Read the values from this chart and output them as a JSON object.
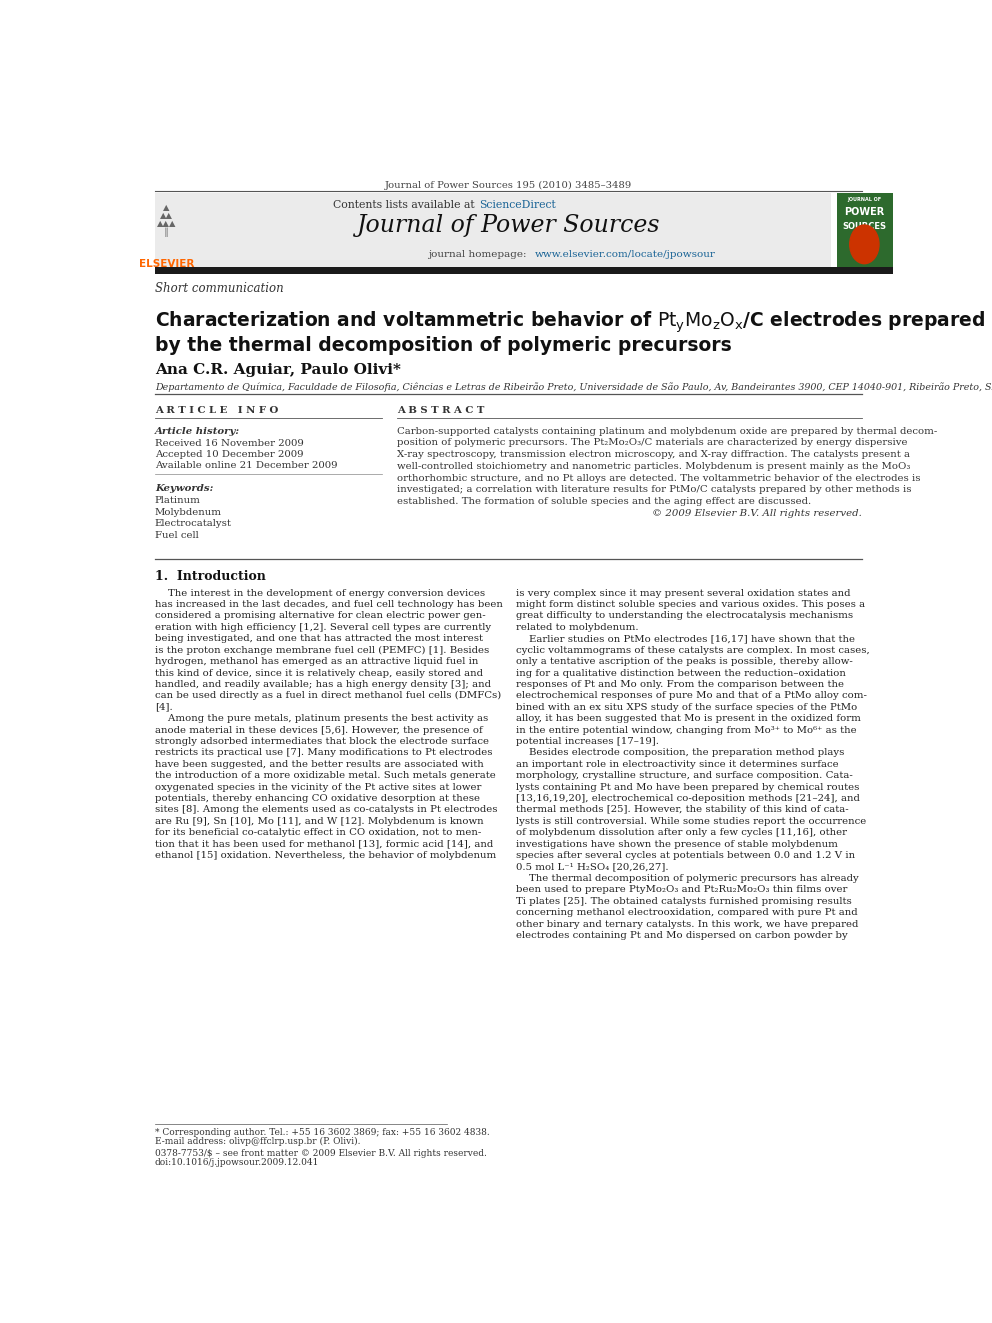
{
  "page_width": 9.92,
  "page_height": 13.23,
  "background_color": "#ffffff",
  "top_journal_ref": "Journal of Power Sources 195 (2010) 3485–3489",
  "header_bg": "#ebebeb",
  "header_sciencedirect_color": "#1a6496",
  "journal_name": "Journal of Power Sources",
  "journal_homepage_url_color": "#1a6496",
  "section_type": "Short communication",
  "title_line1": "Characterization and voltammetric behavior of $\\mathrm{Pt_yMo_zO_x}$/C electrodes prepared",
  "title_line2": "by the thermal decomposition of polymeric precursors",
  "authors": "Ana C.R. Aguiar, Paulo Olivi*",
  "affiliation": "Departamento de Química, Faculdade de Filosofia, Ciências e Letras de Ribeirão Preto, Universidade de São Paulo, Av, Bandeirantes 3900, CEP 14040-901, Ribeirão Preto, SP, Brazil",
  "article_info_header": "A R T I C L E   I N F O",
  "abstract_header": "A B S T R A C T",
  "article_history_label": "Article history:",
  "received": "Received 16 November 2009",
  "accepted": "Accepted 10 December 2009",
  "available": "Available online 21 December 2009",
  "keywords_label": "Keywords:",
  "keywords": [
    "Platinum",
    "Molybdenum",
    "Electrocatalyst",
    "Fuel cell"
  ],
  "abstract_lines": [
    "Carbon-supported catalysts containing platinum and molybdenum oxide are prepared by thermal decom-",
    "position of polymeric precursors. The Pt₂Mo₂O₃/C materials are characterized by energy dispersive",
    "X-ray spectroscopy, transmission electron microscopy, and X-ray diffraction. The catalysts present a",
    "well-controlled stoichiometry and nanometric particles. Molybdenum is present mainly as the MoO₃",
    "orthorhombic structure, and no Pt alloys are detected. The voltammetric behavior of the electrodes is",
    "investigated; a correlation with literature results for PtMo/C catalysts prepared by other methods is",
    "established. The formation of soluble species and the aging effect are discussed."
  ],
  "copyright": "© 2009 Elsevier B.V. All rights reserved.",
  "intro_header": "1.  Introduction",
  "col1_lines": [
    "    The interest in the development of energy conversion devices",
    "has increased in the last decades, and fuel cell technology has been",
    "considered a promising alternative for clean electric power gen-",
    "eration with high efficiency [1,2]. Several cell types are currently",
    "being investigated, and one that has attracted the most interest",
    "is the proton exchange membrane fuel cell (PEMFC) [1]. Besides",
    "hydrogen, methanol has emerged as an attractive liquid fuel in",
    "this kind of device, since it is relatively cheap, easily stored and",
    "handled, and readily available; has a high energy density [3]; and",
    "can be used directly as a fuel in direct methanol fuel cells (DMFCs)",
    "[4].",
    "    Among the pure metals, platinum presents the best activity as",
    "anode material in these devices [5,6]. However, the presence of",
    "strongly adsorbed intermediates that block the electrode surface",
    "restricts its practical use [7]. Many modifications to Pt electrodes",
    "have been suggested, and the better results are associated with",
    "the introduction of a more oxidizable metal. Such metals generate",
    "oxygenated species in the vicinity of the Pt active sites at lower",
    "potentials, thereby enhancing CO oxidative desorption at these",
    "sites [8]. Among the elements used as co-catalysts in Pt electrodes",
    "are Ru [9], Sn [10], Mo [11], and W [12]. Molybdenum is known",
    "for its beneficial co-catalytic effect in CO oxidation, not to men-",
    "tion that it has been used for methanol [13], formic acid [14], and",
    "ethanol [15] oxidation. Nevertheless, the behavior of molybdenum"
  ],
  "col2_lines": [
    "is very complex since it may present several oxidation states and",
    "might form distinct soluble species and various oxides. This poses a",
    "great difficulty to understanding the electrocatalysis mechanisms",
    "related to molybdenum.",
    "    Earlier studies on PtMo electrodes [16,17] have shown that the",
    "cyclic voltammograms of these catalysts are complex. In most cases,",
    "only a tentative ascription of the peaks is possible, thereby allow-",
    "ing for a qualitative distinction between the reduction–oxidation",
    "responses of Pt and Mo only. From the comparison between the",
    "electrochemical responses of pure Mo and that of a PtMo alloy com-",
    "bined with an ex situ XPS study of the surface species of the PtMo",
    "alloy, it has been suggested that Mo is present in the oxidized form",
    "in the entire potential window, changing from Mo³⁺ to Mo⁶⁺ as the",
    "potential increases [17–19].",
    "    Besides electrode composition, the preparation method plays",
    "an important role in electroactivity since it determines surface",
    "morphology, crystalline structure, and surface composition. Cata-",
    "lysts containing Pt and Mo have been prepared by chemical routes",
    "[13,16,19,20], electrochemical co-deposition methods [21–24], and",
    "thermal methods [25]. However, the stability of this kind of cata-",
    "lysts is still controversial. While some studies report the occurrence",
    "of molybdenum dissolution after only a few cycles [11,16], other",
    "investigations have shown the presence of stable molybdenum",
    "species after several cycles at potentials between 0.0 and 1.2 V in",
    "0.5 mol L⁻¹ H₂SO₄ [20,26,27].",
    "    The thermal decomposition of polymeric precursors has already",
    "been used to prepare PtyMo₂O₃ and Pt₂Ru₂Mo₂O₃ thin films over",
    "Ti plates [25]. The obtained catalysts furnished promising results",
    "concerning methanol electrooxidation, compared with pure Pt and",
    "other binary and ternary catalysts. In this work, we have prepared",
    "electrodes containing Pt and Mo dispersed on carbon powder by"
  ],
  "footer_note": "* Corresponding author. Tel.: +55 16 3602 3869; fax: +55 16 3602 4838.",
  "footer_email": "E-mail address: olivp@ffclrp.usp.br (P. Olivi).",
  "footer_issn": "0378-7753/$ – see front matter © 2009 Elsevier B.V. All rights reserved.",
  "footer_doi": "doi:10.1016/j.jpowsour.2009.12.041",
  "elsevier_color": "#ff6600",
  "dark_bar_color": "#1a1a1a",
  "journal_cover_bg": "#2d6a2d"
}
